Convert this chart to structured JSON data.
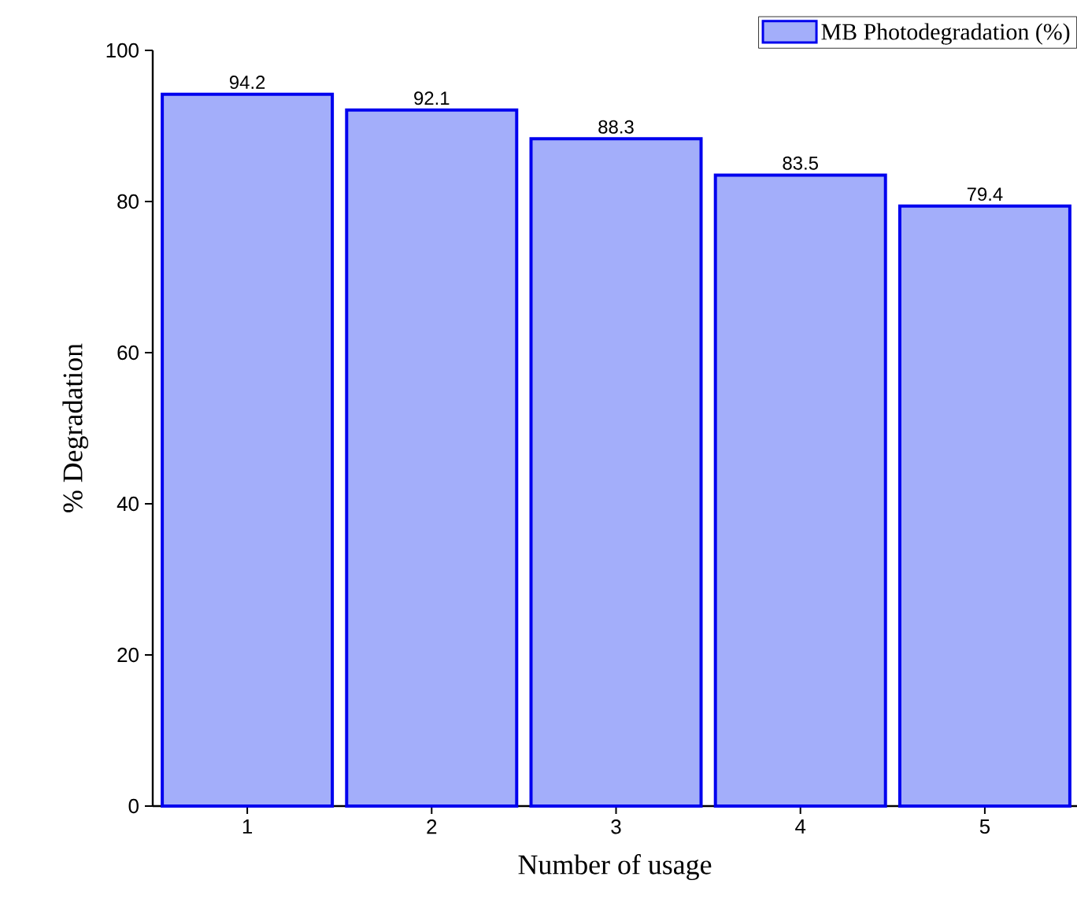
{
  "chart_data": {
    "type": "bar",
    "xlabel": "Number of usage",
    "ylabel": "% Degradation",
    "categories": [
      "1",
      "2",
      "3",
      "4",
      "5"
    ],
    "series": [
      {
        "name": "MB Photodegradation (%)",
        "color": "#a3aefa",
        "values": [
          94.2,
          92.1,
          88.3,
          83.5,
          79.4
        ]
      }
    ],
    "ylim": [
      0,
      100
    ],
    "yticks": [
      0,
      20,
      40,
      60,
      80,
      100
    ],
    "data_labels": true,
    "legend": "top right"
  }
}
